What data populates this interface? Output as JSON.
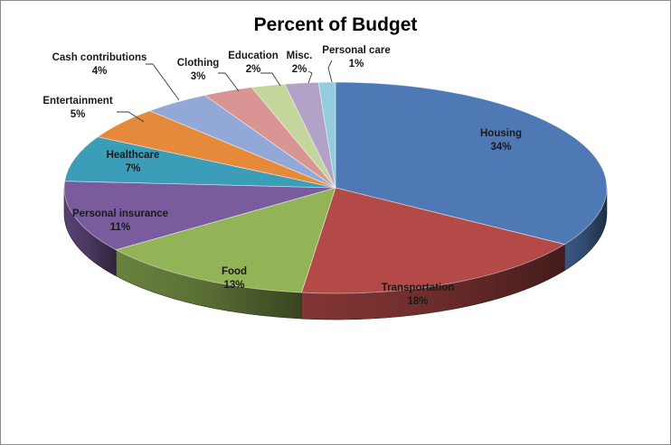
{
  "chart_data": {
    "type": "pie",
    "title": "Percent of Budget",
    "slices": [
      {
        "label": "Housing",
        "value": 34,
        "value_label": "34%",
        "color": "#4F79B5"
      },
      {
        "label": "Transportation",
        "value": 18,
        "value_label": "18%",
        "color": "#B44A47"
      },
      {
        "label": "Food",
        "value": 13,
        "value_label": "13%",
        "color": "#93B456"
      },
      {
        "label": "Personal insurance",
        "value": 11,
        "value_label": "11%",
        "color": "#7A5B9E"
      },
      {
        "label": "Healthcare",
        "value": 7,
        "value_label": "7%",
        "color": "#3C9DB8"
      },
      {
        "label": "Entertainment",
        "value": 5,
        "value_label": "5%",
        "color": "#E58A3B"
      },
      {
        "label": "Cash contributions",
        "value": 4,
        "value_label": "4%",
        "color": "#92A9D8"
      },
      {
        "label": "Clothing",
        "value": 3,
        "value_label": "3%",
        "color": "#D99493"
      },
      {
        "label": "Education",
        "value": 2,
        "value_label": "2%",
        "color": "#C3D69B"
      },
      {
        "label": "Misc.",
        "value": 2,
        "value_label": "2%",
        "color": "#B3A2C7"
      },
      {
        "label": "Personal care",
        "value": 1,
        "value_label": "1%",
        "color": "#93CDDD"
      }
    ],
    "style": "3d-pie",
    "legend": "none",
    "labels": "category-and-percent"
  }
}
